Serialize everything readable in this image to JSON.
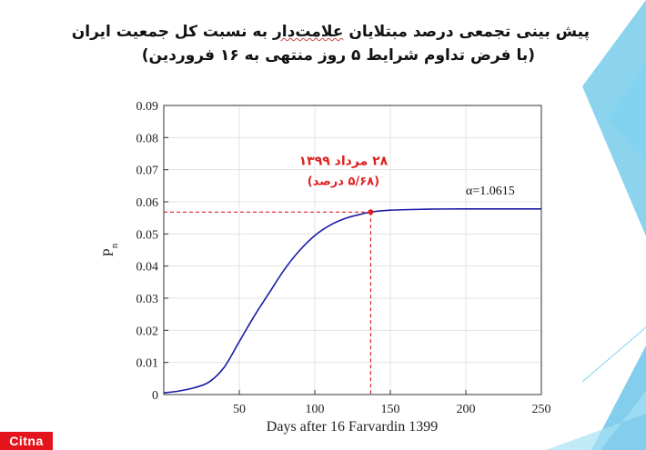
{
  "slide": {
    "title_line1_a": "پیش بینی تجمعی درصد مبتلایان ",
    "title_line1_b": "علامت‌دار",
    "title_line1_c": " به نسبت کل جمعیت ایران",
    "title_line2": "(با فرض تداوم شرایط ۵ روز منتهی به ۱۶ فروردین)",
    "logo_text": "Citna",
    "accent_color": "#2eaee0"
  },
  "chart_data": {
    "type": "line",
    "xlabel": "Days after 16 Farvardin 1399",
    "ylabel": "P",
    "ylabel_subscript": "n",
    "xlim": [
      0,
      250
    ],
    "ylim": [
      0,
      0.09
    ],
    "grid": true,
    "x_ticks": [
      50,
      100,
      150,
      200,
      250
    ],
    "x_tick_labels": [
      "50",
      "100",
      "150",
      "200",
      "250"
    ],
    "y_ticks": [
      0,
      0.01,
      0.02,
      0.03,
      0.04,
      0.05,
      0.06,
      0.07,
      0.08,
      0.09
    ],
    "y_tick_labels": [
      "0",
      "0.01",
      "0.02",
      "0.03",
      "0.04",
      "0.05",
      "0.06",
      "0.07",
      "0.08",
      "0.09"
    ],
    "series": [
      {
        "color": "#1a1aa6",
        "x": [
          0,
          10,
          20,
          30,
          40,
          50,
          60,
          70,
          80,
          90,
          100,
          110,
          120,
          130,
          137,
          150,
          175,
          200,
          225,
          250
        ],
        "y": [
          0.0005,
          0.0011,
          0.0021,
          0.0039,
          0.0085,
          0.0165,
          0.0245,
          0.0318,
          0.039,
          0.0449,
          0.0495,
          0.0527,
          0.0548,
          0.0561,
          0.0568,
          0.0574,
          0.0577,
          0.0578,
          0.0578,
          0.0578
        ]
      }
    ],
    "highlight": {
      "x": 137,
      "y": 0.0568,
      "color": "#e02020",
      "label_line1": "۲۸ مرداد ۱۳۹۹",
      "label_line2": "(۵/۶۸ درصد)"
    },
    "annotation": "α=1.0615"
  }
}
